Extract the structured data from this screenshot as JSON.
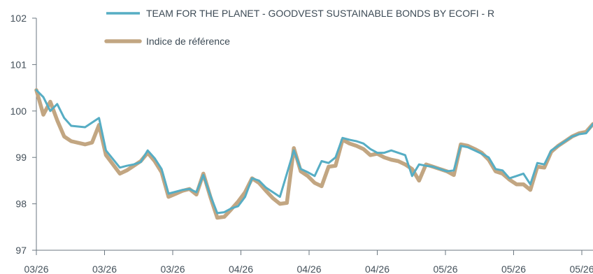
{
  "chart_data": {
    "type": "line",
    "title": "",
    "xlabel": "",
    "ylabel": "",
    "ylim": [
      97,
      102
    ],
    "yticks": [
      97,
      98,
      99,
      100,
      101,
      102
    ],
    "xtick_labels": [
      "03/26",
      "03/26",
      "03/26",
      "04/26",
      "04/26",
      "04/26",
      "05/26",
      "05/26",
      "05/26"
    ],
    "grid": false,
    "legend": "top-left",
    "series": [
      {
        "name": "TEAM FOR THE PLANET - GOODVEST SUSTAINABLE BONDS BY ECOFI - R",
        "color": "#56adc4",
        "x": [
          0,
          1,
          2,
          3,
          4,
          5,
          7,
          9,
          10,
          12,
          13,
          14,
          15,
          16,
          17,
          18,
          19,
          21,
          22,
          23,
          24,
          25,
          26,
          27,
          28,
          29,
          30,
          31,
          32,
          33,
          34,
          35,
          37,
          38,
          39,
          40,
          41,
          42,
          43,
          44,
          45,
          46,
          47,
          48,
          49,
          50,
          51,
          52,
          53,
          54,
          55,
          56,
          57,
          58,
          59,
          60,
          61,
          62,
          63,
          64,
          65,
          66,
          67,
          68,
          69,
          70,
          71,
          72,
          73,
          74,
          75,
          76,
          77,
          78,
          79,
          80
        ],
        "values": [
          100.45,
          100.3,
          100.0,
          100.15,
          99.85,
          99.68,
          99.65,
          99.85,
          99.15,
          98.78,
          98.82,
          98.85,
          98.9,
          99.15,
          98.98,
          98.75,
          98.22,
          98.3,
          98.32,
          98.25,
          98.62,
          98.18,
          97.8,
          97.82,
          97.9,
          97.95,
          98.15,
          98.55,
          98.5,
          98.35,
          98.25,
          98.15,
          99.15,
          98.75,
          98.68,
          98.6,
          98.92,
          98.88,
          99.0,
          99.42,
          99.38,
          99.35,
          99.3,
          99.18,
          99.1,
          99.1,
          99.15,
          99.1,
          99.05,
          98.6,
          98.85,
          98.82,
          98.8,
          98.75,
          98.7,
          98.72,
          99.25,
          99.22,
          99.15,
          99.08,
          99.0,
          98.75,
          98.72,
          98.55,
          98.6,
          98.65,
          98.42,
          98.88,
          98.85,
          99.15,
          99.25,
          99.35,
          99.45,
          99.5,
          99.52,
          99.72
        ]
      },
      {
        "name": "Indice de référence",
        "color": "#c2a682",
        "x": [
          0,
          1,
          2,
          3,
          4,
          5,
          7,
          8,
          9,
          10,
          12,
          13,
          14,
          15,
          16,
          17,
          18,
          19,
          21,
          22,
          23,
          24,
          25,
          26,
          27,
          28,
          29,
          30,
          31,
          32,
          33,
          34,
          35,
          36,
          37,
          38,
          39,
          40,
          41,
          42,
          43,
          44,
          45,
          46,
          47,
          48,
          49,
          50,
          51,
          52,
          53,
          54,
          55,
          56,
          57,
          58,
          59,
          60,
          61,
          62,
          63,
          64,
          65,
          66,
          67,
          68,
          69,
          70,
          71,
          72,
          73,
          74,
          75,
          76,
          77,
          78,
          79,
          80
        ],
        "values": [
          100.45,
          99.92,
          100.2,
          99.8,
          99.45,
          99.35,
          99.28,
          99.32,
          99.7,
          99.05,
          98.65,
          98.72,
          98.82,
          98.92,
          99.1,
          98.92,
          98.68,
          98.15,
          98.28,
          98.32,
          98.2,
          98.65,
          98.15,
          97.7,
          97.72,
          97.88,
          98.05,
          98.25,
          98.55,
          98.45,
          98.28,
          98.12,
          98.0,
          98.02,
          99.2,
          98.7,
          98.6,
          98.45,
          98.38,
          98.8,
          98.82,
          99.38,
          99.3,
          99.25,
          99.18,
          99.05,
          99.08,
          99.0,
          98.95,
          98.92,
          98.85,
          98.75,
          98.5,
          98.85,
          98.8,
          98.75,
          98.7,
          98.62,
          99.28,
          99.25,
          99.18,
          99.1,
          98.95,
          98.7,
          98.65,
          98.52,
          98.42,
          98.42,
          98.3,
          98.8,
          98.78,
          99.12,
          99.25,
          99.35,
          99.45,
          99.52,
          99.55,
          99.72
        ]
      }
    ]
  }
}
